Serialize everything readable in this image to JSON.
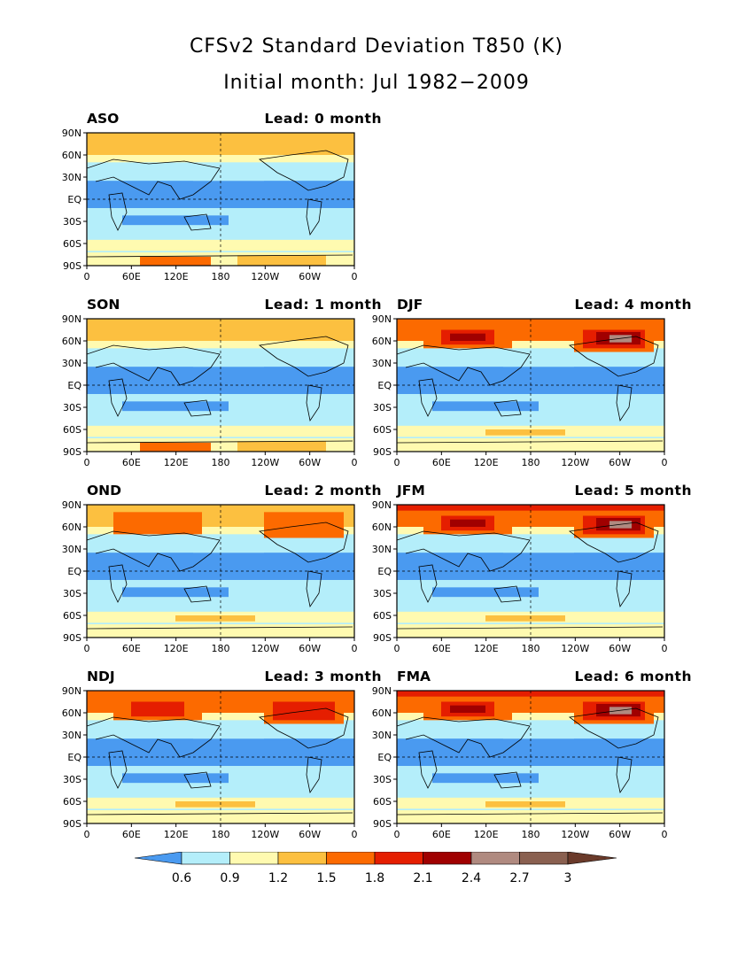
{
  "title": "CFSv2 Standard Deviation T850 (K)",
  "subtitle": "Initial month: Jul 1982−2009",
  "y_ticks": [
    "90N",
    "60N",
    "30N",
    "EQ",
    "30S",
    "60S",
    "90S"
  ],
  "x_ticks": [
    "0",
    "60E",
    "120E",
    "180",
    "120W",
    "60W",
    "0"
  ],
  "panels": [
    {
      "season": "ASO",
      "lead": "Lead: 0 month"
    },
    {
      "season": "SON",
      "lead": "Lead: 1 month"
    },
    {
      "season": "DJF",
      "lead": "Lead: 4 month"
    },
    {
      "season": "OND",
      "lead": "Lead: 2 month"
    },
    {
      "season": "JFM",
      "lead": "Lead: 5 month"
    },
    {
      "season": "NDJ",
      "lead": "Lead: 3 month"
    },
    {
      "season": "FMA",
      "lead": "Lead: 6 month"
    }
  ],
  "colorbar": {
    "labels": [
      "0.6",
      "0.9",
      "1.2",
      "1.5",
      "1.8",
      "2.1",
      "2.4",
      "2.7",
      "3"
    ],
    "colors": [
      "#4a9af0",
      "#b4eefa",
      "#fffab0",
      "#fcc040",
      "#fc6a00",
      "#e51e00",
      "#a00000",
      "#b08a80",
      "#8a6050",
      "#6a3a2a"
    ]
  }
}
